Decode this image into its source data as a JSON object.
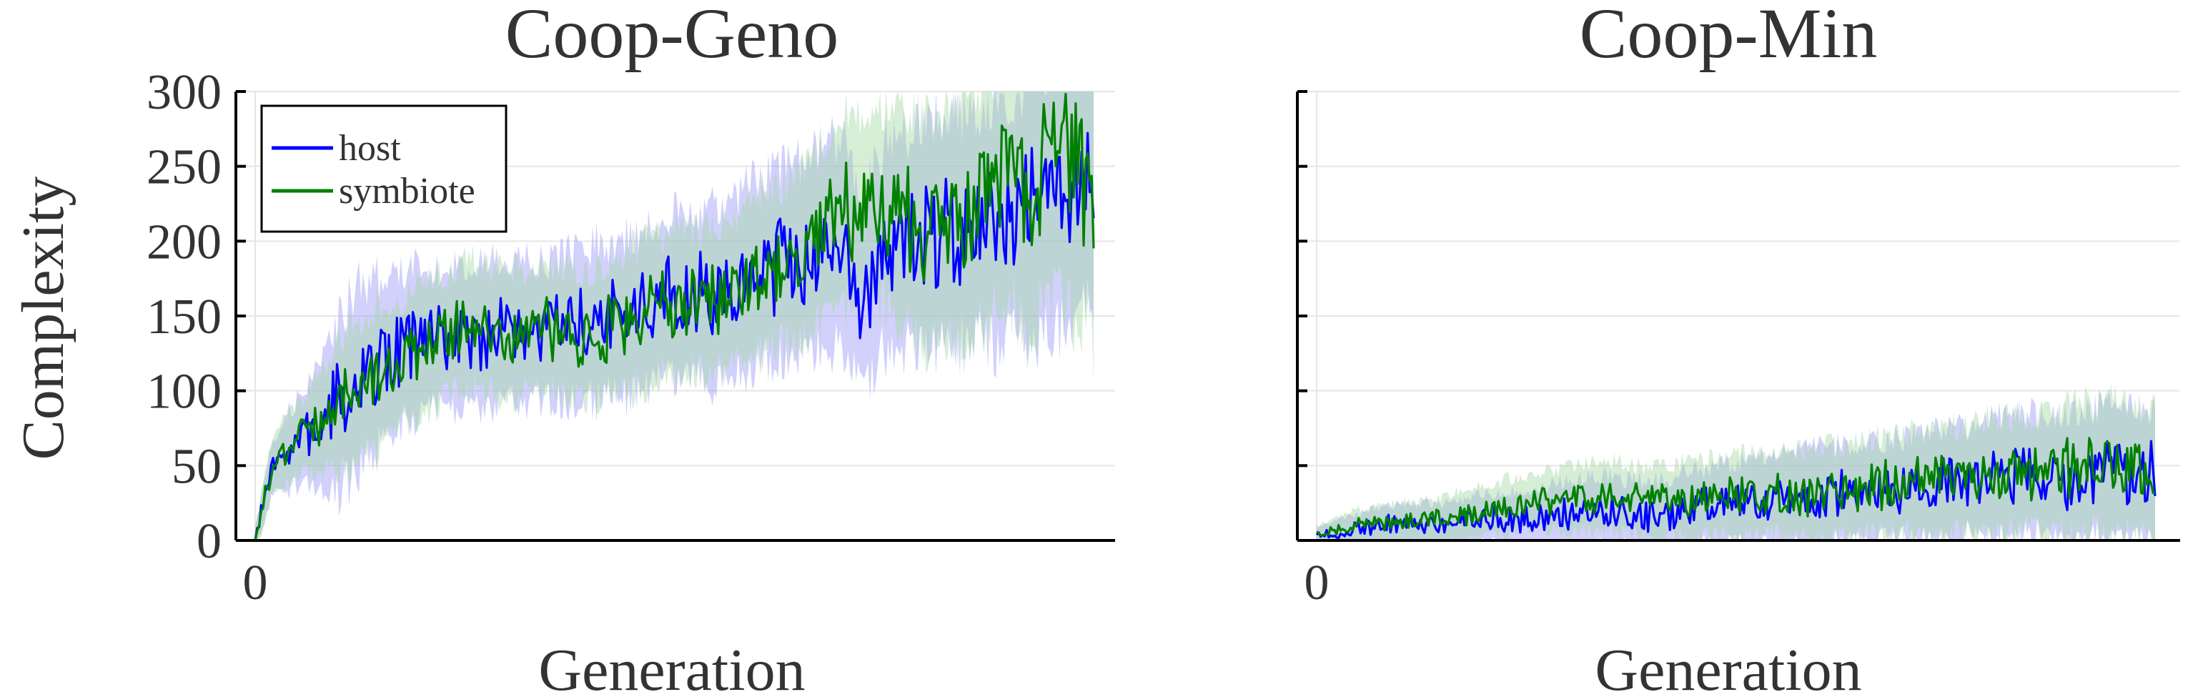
{
  "chart_data": [
    {
      "type": "line",
      "title": "Coop-Geno",
      "xlabel": "Generation",
      "ylabel": "Complexity",
      "xlim": [
        0,
        1000
      ],
      "ylim": [
        0,
        300
      ],
      "x_tick_labels": [
        {
          "value": 0,
          "label": "0"
        }
      ],
      "y_tick_labels": [
        {
          "value": 0,
          "label": "0"
        },
        {
          "value": 50,
          "label": "50"
        },
        {
          "value": 100,
          "label": "100"
        },
        {
          "value": 150,
          "label": "150"
        },
        {
          "value": 200,
          "label": "200"
        },
        {
          "value": 250,
          "label": "250"
        },
        {
          "value": 300,
          "label": "300"
        }
      ],
      "grid": true,
      "legend": {
        "position": "top-left",
        "entries": [
          "host",
          "symbiote"
        ]
      },
      "series": [
        {
          "name": "host",
          "color": "#0000ff",
          "band_color": "#9a9af7",
          "x": [
            0,
            20,
            40,
            60,
            80,
            100,
            125,
            150,
            175,
            200,
            250,
            300,
            350,
            400,
            450,
            500,
            550,
            600,
            650,
            700,
            725,
            750,
            800,
            850,
            900,
            950,
            1000
          ],
          "y": [
            0,
            48,
            60,
            70,
            78,
            90,
            110,
            120,
            128,
            135,
            135,
            140,
            140,
            145,
            150,
            165,
            163,
            180,
            190,
            200,
            165,
            195,
            205,
            210,
            215,
            230,
            255
          ],
          "band": [
            8,
            18,
            25,
            30,
            40,
            55,
            60,
            55,
            50,
            45,
            45,
            45,
            45,
            50,
            50,
            55,
            55,
            60,
            60,
            65,
            60,
            65,
            70,
            75,
            80,
            85,
            90
          ]
        },
        {
          "name": "symbiote",
          "color": "#008000",
          "band_color": "#a3d7a3",
          "x": [
            0,
            20,
            40,
            60,
            80,
            100,
            125,
            150,
            175,
            200,
            250,
            300,
            350,
            400,
            450,
            500,
            550,
            600,
            650,
            700,
            750,
            800,
            850,
            900,
            925,
            950,
            1000
          ],
          "y": [
            0,
            50,
            62,
            72,
            80,
            90,
            100,
            110,
            118,
            128,
            145,
            138,
            142,
            135,
            148,
            160,
            160,
            178,
            190,
            220,
            225,
            205,
            215,
            245,
            225,
            265,
            240
          ],
          "band": [
            8,
            18,
            22,
            25,
            30,
            40,
            45,
            45,
            40,
            40,
            40,
            40,
            40,
            40,
            45,
            45,
            45,
            50,
            55,
            60,
            65,
            70,
            75,
            80,
            85,
            95,
            100
          ]
        }
      ]
    },
    {
      "type": "line",
      "title": "Coop-Min",
      "xlabel": "Generation",
      "xlim": [
        0,
        1000
      ],
      "ylim": [
        0,
        300
      ],
      "x_tick_labels": [
        {
          "value": 0,
          "label": "0"
        }
      ],
      "grid": true,
      "series": [
        {
          "name": "host",
          "color": "#0000ff",
          "band_color": "#9a9af7",
          "x": [
            0,
            50,
            100,
            150,
            200,
            250,
            300,
            350,
            400,
            450,
            500,
            550,
            600,
            650,
            700,
            750,
            800,
            850,
            900,
            950,
            1000
          ],
          "y": [
            3,
            8,
            12,
            10,
            15,
            14,
            18,
            20,
            15,
            22,
            25,
            28,
            30,
            32,
            35,
            38,
            42,
            45,
            40,
            48,
            42
          ],
          "band": [
            5,
            10,
            12,
            14,
            16,
            18,
            20,
            22,
            22,
            24,
            26,
            28,
            30,
            30,
            32,
            34,
            36,
            38,
            40,
            42,
            45
          ]
        },
        {
          "name": "symbiote",
          "color": "#008000",
          "band_color": "#a3d7a3",
          "x": [
            0,
            50,
            100,
            150,
            200,
            250,
            300,
            350,
            400,
            450,
            500,
            550,
            600,
            650,
            700,
            750,
            800,
            850,
            900,
            950,
            1000
          ],
          "y": [
            5,
            10,
            12,
            14,
            20,
            25,
            28,
            30,
            25,
            28,
            30,
            32,
            30,
            35,
            38,
            40,
            42,
            45,
            48,
            50,
            45
          ],
          "band": [
            5,
            10,
            12,
            14,
            16,
            18,
            20,
            22,
            22,
            24,
            26,
            28,
            30,
            30,
            32,
            34,
            36,
            38,
            40,
            42,
            45
          ]
        }
      ]
    }
  ]
}
